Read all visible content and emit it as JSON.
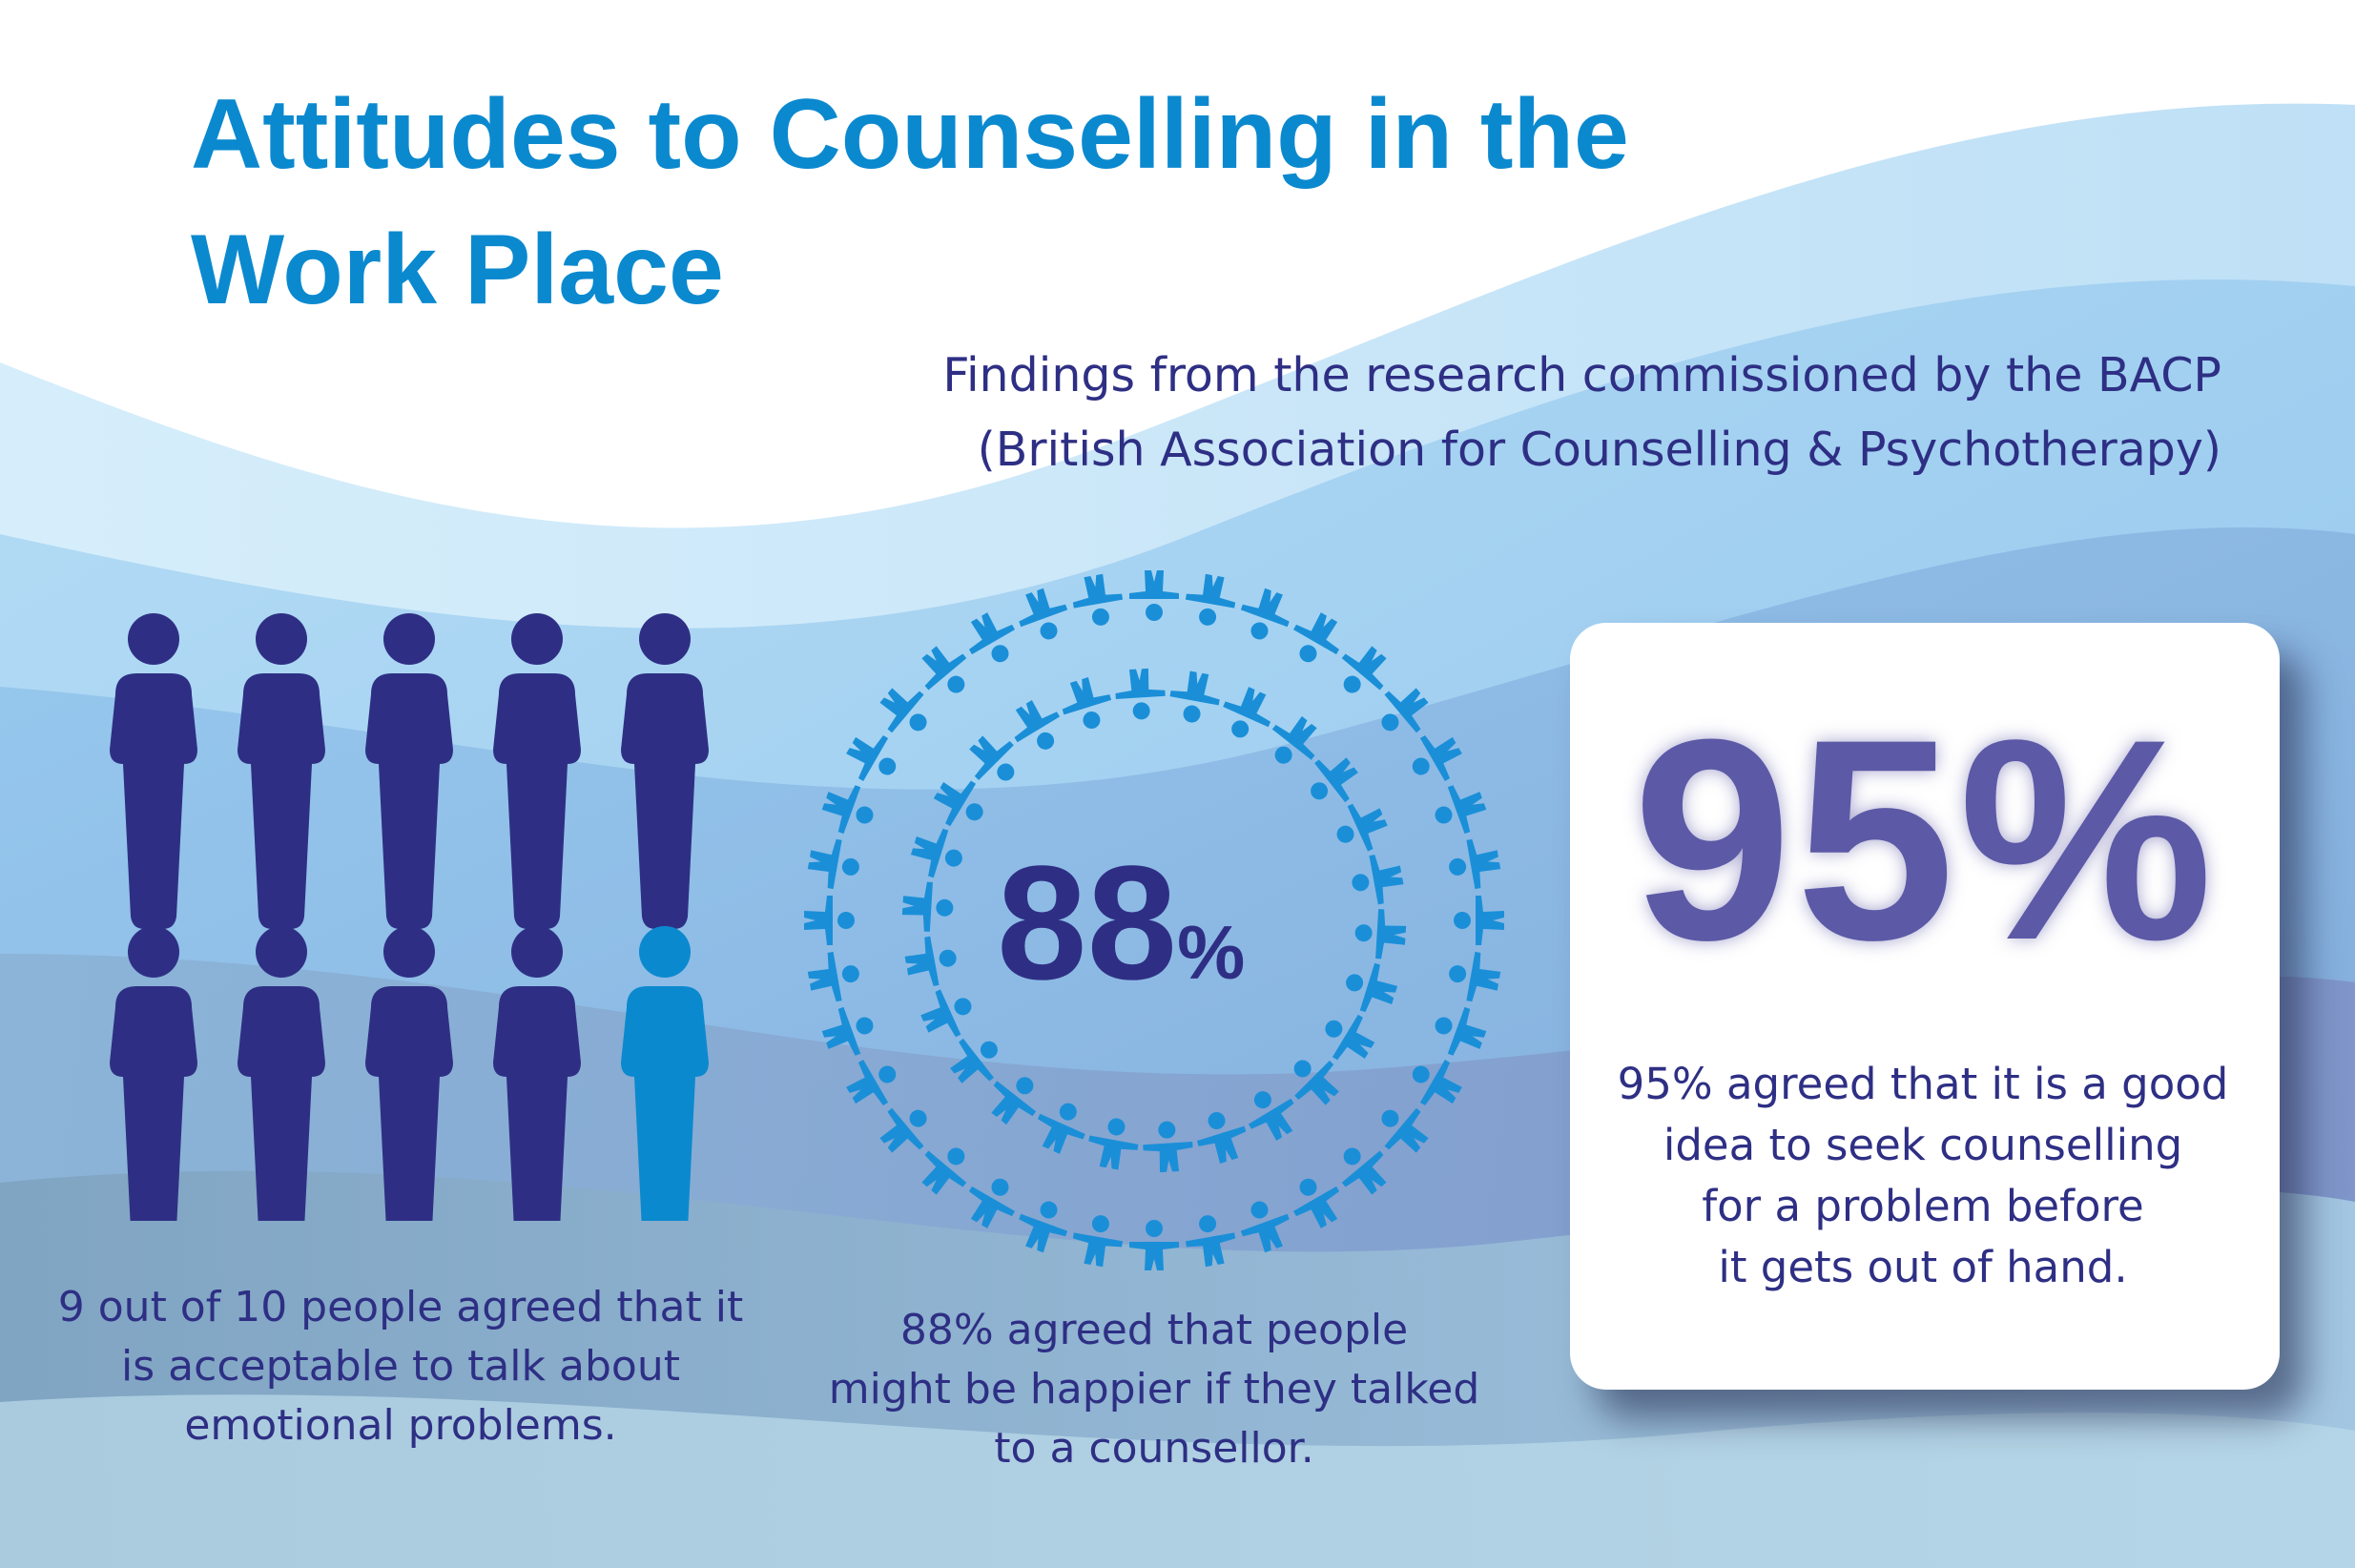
{
  "title_lines": [
    "Attitudes to Counselling in the",
    "Work Place"
  ],
  "subtitle_lines": [
    "Findings from the research commissioned by the BACP",
    "(British Association for Counselling & Psychotherapy)"
  ],
  "stat1": {
    "agreed": 9,
    "total": 10,
    "caption_lines": [
      "9 out of 10 people agreed that it",
      "is acceptable to talk about",
      "emotional problems."
    ],
    "colors": {
      "agreed": "#2e2f84",
      "other": "#0b89cf"
    }
  },
  "stat2": {
    "number": "88",
    "percent_sign": "%",
    "caption_lines": [
      "88% agreed that people",
      "might be happier if they talked",
      "to a counsellor."
    ],
    "ring_color": "#1a8fd8"
  },
  "stat3": {
    "value": "95%",
    "caption_lines": [
      "95% agreed that it is a good",
      "idea to seek counselling",
      "for a problem before",
      "it gets out of hand."
    ]
  },
  "colors": {
    "title": "#0b89cf",
    "text": "#2e2f84",
    "wave_light": "#cde9f8",
    "wave_mid": "#8ac6ee",
    "wave_dark": "#7a97c9"
  }
}
